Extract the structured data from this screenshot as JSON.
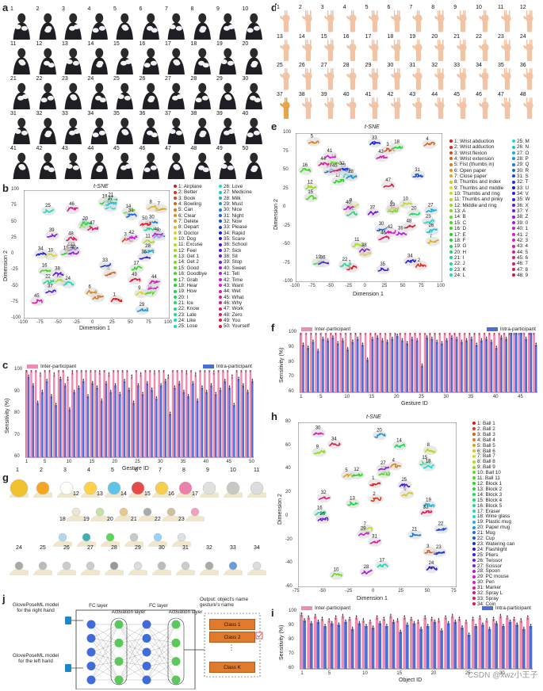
{
  "panels": {
    "a": "a",
    "b": "b",
    "c": "c",
    "d": "d",
    "e": "e",
    "f": "f",
    "g": "g",
    "h": "h",
    "i": "i",
    "j": "j"
  },
  "panel_a": {
    "numbers": [
      "1",
      "2",
      "3",
      "4",
      "5",
      "6",
      "7",
      "8",
      "9",
      "10",
      "11",
      "12",
      "13",
      "14",
      "15",
      "16",
      "17",
      "18",
      "19",
      "20",
      "21",
      "22",
      "23",
      "24",
      "25",
      "26",
      "27",
      "28",
      "29",
      "30",
      "31",
      "32",
      "33",
      "34",
      "35",
      "36",
      "37",
      "38",
      "39",
      "40",
      "41",
      "42",
      "43",
      "44",
      "45",
      "46",
      "47",
      "48",
      "49",
      "50"
    ]
  },
  "panel_d": {
    "numbers": [
      "1",
      "2",
      "3",
      "4",
      "5",
      "6",
      "7",
      "8",
      "9",
      "10",
      "11",
      "12",
      "13",
      "14",
      "15",
      "16",
      "17",
      "18",
      "19",
      "20",
      "21",
      "22",
      "23",
      "24",
      "25",
      "26",
      "27",
      "28",
      "29",
      "30",
      "31",
      "32",
      "33",
      "34",
      "35",
      "36",
      "37",
      "38",
      "39",
      "40",
      "41",
      "42",
      "43",
      "44",
      "45",
      "46",
      "47",
      "48"
    ]
  },
  "panel_g": {
    "numbers": [
      "1",
      "2",
      "3",
      "4",
      "5",
      "6",
      "7",
      "8",
      "9",
      "10",
      "11",
      "12",
      "13",
      "14",
      "15",
      "16",
      "17",
      "18",
      "19",
      "20",
      "21",
      "22",
      "23",
      "24",
      "25",
      "26",
      "27",
      "28",
      "29",
      "30",
      "31",
      "32",
      "33",
      "34"
    ]
  },
  "tsne_b": {
    "title": "t-SNE",
    "xlabel": "Dimension 1",
    "ylabel": "Dimension 2",
    "xticks": [
      "-100",
      "-75",
      "-50",
      "-25",
      "0",
      "25",
      "50",
      "75",
      "100"
    ],
    "yticks": [
      "100",
      "75",
      "50",
      "25",
      "0",
      "-25",
      "-50",
      "-75",
      "-100"
    ],
    "legend_col1": [
      "1: Airplane",
      "2: Better",
      "3: Book",
      "4: Bowling",
      "5: Can",
      "6: Clear",
      "7: Delete",
      "8: Depart",
      "9: Doctor",
      "10: Dog",
      "11: Excuse",
      "12: Feel",
      "13: Get 1",
      "14: Get 2",
      "15: Good",
      "16: Goodbye",
      "17: Grab",
      "18: Hear",
      "19: How",
      "20: I",
      "21: Ice",
      "22: Know",
      "23: Late",
      "24: Like",
      "25: Lose"
    ],
    "legend_col2": [
      "26: Love",
      "27: Medicine",
      "28: Milk",
      "29: Must",
      "30: Nice",
      "31: Night",
      "32: Now",
      "33: Please",
      "34: Rapid",
      "35: Scare",
      "36: School",
      "37: Sick",
      "38: Sit",
      "39: Stop",
      "40: Sweet",
      "41: Tell",
      "42: Time",
      "43: Want",
      "44: Wet",
      "45: What",
      "46: Why",
      "47: Work",
      "48: Zero",
      "49: You",
      "50: Yourself"
    ]
  },
  "tsne_e": {
    "title": "t-SNE",
    "xlabel": "Dimension 1",
    "ylabel": "Dimension 2",
    "xticks": [
      "-100",
      "-75",
      "-50",
      "-25",
      "0",
      "25",
      "50",
      "75",
      "100"
    ],
    "yticks": [
      "100",
      "75",
      "50",
      "25",
      "0",
      "-25",
      "-50",
      "-75",
      "-100"
    ],
    "legend_col1": [
      "1: Wrist abduction",
      "2: Wrist adduction",
      "3: Wrist flexion",
      "4: Wrist extension",
      "5: Fist (thumbs in)",
      "6: Open paper",
      "7: Close paper",
      "8: Thumbs and index",
      "9: Thumbs and middle",
      "10: Thumbs and ring",
      "11: Thumbs and pinky",
      "12: Middle and ring",
      "13: A",
      "14: B",
      "15: C",
      "16: D",
      "17: E",
      "18: F",
      "19: G",
      "20: H",
      "21: I",
      "22: J",
      "23: K",
      "24: L"
    ],
    "legend_col2": [
      "25: M",
      "26: N",
      "27: O",
      "28: P",
      "29: Q",
      "30: R",
      "31: S",
      "32: T",
      "33: U",
      "34: V",
      "35: W",
      "36: X",
      "37: Y",
      "38: Z",
      "39: 0",
      "40: 1",
      "41: 2",
      "42: 3",
      "43: 4",
      "44: 5",
      "45: 6",
      "46: 7",
      "47: 8",
      "48: 9"
    ]
  },
  "tsne_h": {
    "title": "t-SNE",
    "xlabel": "Dimension 1",
    "ylabel": "Dimension 2",
    "xticks": [
      "-75",
      "-50",
      "-25",
      "0",
      "25",
      "50",
      "75"
    ],
    "yticks": [
      "80",
      "60",
      "40",
      "20",
      "0",
      "-20",
      "-40",
      "-60"
    ],
    "legend_col1": [
      "1: Ball 1",
      "2: Ball 2",
      "3: Ball 3",
      "4: Ball 4",
      "5: Ball 5",
      "6: Ball 6",
      "7: Ball 7",
      "8: Ball 8",
      "9: Ball 9",
      "10: Ball 10",
      "11: Ball 11",
      "12: Block 1",
      "13: Block 2",
      "14: Block 3",
      "15: Block 4",
      "16: Block 5",
      "17: Eraser",
      "18: Wine glass",
      "19: Plastic mug",
      "20: Paper mug",
      "21: Mug",
      "22: Cup",
      "23: Watering can",
      "24: Flashlight",
      "25: Pliers",
      "26: Twissor",
      "27: Scissor",
      "28: Spoon",
      "29: PC mouse",
      "30: Pen",
      "31: Marker",
      "32: Spray L",
      "33: Spray",
      "34: Coin"
    ]
  },
  "bar_legend": {
    "inter": "Inter-participant",
    "intra": "Intra-participant"
  },
  "colors": {
    "inter": "#f08cb0",
    "intra": "#4b6fd6",
    "orange": "#e07b2e"
  },
  "chart_data": [
    {
      "type": "bar",
      "panel": "c",
      "xlabel": "Gesture ID",
      "ylabel": "Sensitivity (%)",
      "ylim": [
        60,
        100
      ],
      "xticks": [
        "1",
        "5",
        "10",
        "15",
        "20",
        "25",
        "30",
        "35",
        "40",
        "45",
        "50"
      ],
      "yticks": [
        "100",
        "90",
        "80",
        "70",
        "60"
      ],
      "series": [
        {
          "name": "Inter-participant",
          "values": [
            100,
            100,
            100,
            98,
            100,
            100,
            98,
            100,
            100,
            96,
            99,
            100,
            100,
            100,
            100,
            100,
            99,
            100,
            98,
            100,
            100,
            100,
            100,
            97,
            100,
            98,
            100,
            100,
            99,
            100,
            100,
            97,
            100,
            100,
            100,
            99,
            100,
            98,
            100,
            100,
            100,
            99,
            100,
            100,
            100,
            97,
            100,
            100,
            100,
            100
          ]
        },
        {
          "name": "Intra-participant",
          "values": [
            97,
            93,
            85,
            90,
            95,
            88,
            84,
            96,
            93,
            82,
            90,
            92,
            95,
            88,
            94,
            92,
            86,
            94,
            90,
            93,
            89,
            95,
            91,
            85,
            93,
            89,
            94,
            91,
            87,
            93,
            95,
            80,
            92,
            94,
            90,
            88,
            94,
            86,
            92,
            90,
            93,
            89,
            91,
            95,
            92,
            84,
            96,
            93,
            90,
            95
          ]
        }
      ]
    },
    {
      "type": "bar",
      "panel": "f",
      "xlabel": "Gesture ID",
      "ylabel": "Sensitivity (%)",
      "ylim": [
        60,
        100
      ],
      "xticks": [
        "1",
        "5",
        "10",
        "15",
        "20",
        "25",
        "30",
        "35",
        "40",
        "45"
      ],
      "yticks": [
        "100",
        "90",
        "80",
        "70",
        "60"
      ],
      "series": [
        {
          "name": "Inter-participant",
          "values": [
            100,
            100,
            100,
            100,
            100,
            100,
            100,
            100,
            100,
            100,
            100,
            100,
            100,
            100,
            100,
            100,
            100,
            100,
            100,
            100,
            100,
            100,
            100,
            100,
            100,
            100,
            100,
            100,
            100,
            100,
            100,
            100,
            100,
            100,
            100,
            100,
            100,
            100,
            100,
            100,
            100,
            100,
            100,
            100,
            100,
            100,
            100,
            100
          ]
        },
        {
          "name": "Intra-participant",
          "values": [
            92,
            90,
            94,
            88,
            96,
            95,
            97,
            93,
            95,
            89,
            94,
            96,
            92,
            82,
            96,
            97,
            95,
            94,
            96,
            98,
            95,
            93,
            96,
            95,
            78,
            97,
            96,
            94,
            93,
            95,
            97,
            96,
            94,
            95,
            96,
            92,
            95,
            96,
            94,
            90,
            97,
            96,
            100,
            100,
            100,
            96,
            100,
            92
          ]
        }
      ]
    },
    {
      "type": "bar",
      "panel": "i",
      "xlabel": "Object ID",
      "ylabel": "Sensitivity (%)",
      "ylim": [
        60,
        100
      ],
      "xticks": [
        "1",
        "5",
        "10",
        "15",
        "20",
        "25",
        "30"
      ],
      "yticks": [
        "100",
        "90",
        "80",
        "70",
        "60"
      ],
      "series": [
        {
          "name": "Inter-participant",
          "values": [
            98,
            96,
            97,
            95,
            94,
            96,
            97,
            95,
            96,
            94,
            93,
            96,
            95,
            97,
            94,
            96,
            95,
            93,
            96,
            95,
            94,
            96,
            97,
            95,
            93,
            95,
            96,
            94,
            95,
            97,
            96,
            95,
            94,
            96
          ]
        },
        {
          "name": "Intra-participant",
          "values": [
            94,
            92,
            93,
            90,
            92,
            91,
            93,
            88,
            92,
            90,
            89,
            92,
            90,
            93,
            86,
            91,
            92,
            88,
            90,
            93,
            87,
            92,
            93,
            89,
            84,
            90,
            91,
            88,
            92,
            90,
            93,
            91,
            88,
            90
          ]
        }
      ]
    }
  ],
  "panel_j": {
    "left_top": "GlovePoseML model for the right hand",
    "left_bottom": "GlovePoseML model for the left hand",
    "fc1": "FC layer",
    "act1": "Activation layer",
    "fc2": "FC layer",
    "act2": "Activation layer",
    "output": "Output: object's name gesture's name",
    "class1": "Class 1",
    "class2": "Class 2",
    "classk": "Class K",
    "dots": "⋮"
  },
  "watermark": "CSDN @xwz小王子"
}
